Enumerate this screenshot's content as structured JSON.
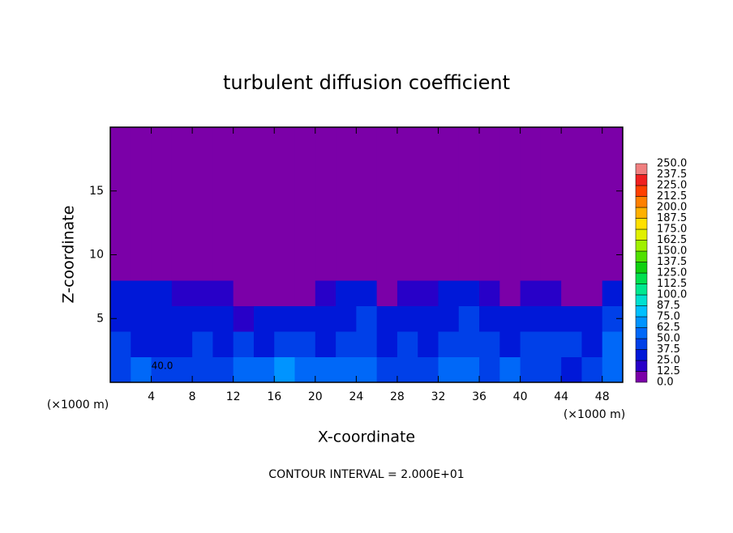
{
  "chart_data": {
    "type": "heatmap",
    "title": "turbulent diffusion coefficient",
    "x_label": "X-coordinate",
    "y_label": "Z-coordinate",
    "x_unit": "(×1000 m)",
    "x_unit_right": "(×1000 m)",
    "footnote": "CONTOUR INTERVAL = 2.000E+01",
    "annotations": [
      "40.0"
    ],
    "xlim": [
      0,
      50
    ],
    "ylim": [
      0,
      20
    ],
    "xticks": [
      4,
      8,
      12,
      16,
      20,
      24,
      28,
      32,
      36,
      40,
      44,
      48
    ],
    "yticks": [
      5,
      10,
      15
    ],
    "x_edges": [
      0,
      2,
      4,
      6,
      8,
      10,
      12,
      14,
      16,
      18,
      20,
      22,
      24,
      26,
      28,
      30,
      32,
      34,
      36,
      38,
      40,
      42,
      44,
      46,
      48,
      50
    ],
    "z_edges": [
      0,
      2,
      4,
      6,
      8,
      10,
      12,
      14,
      16,
      18,
      20
    ],
    "values": [
      [
        45,
        50,
        40,
        45,
        45,
        40,
        55,
        60,
        70,
        55,
        60,
        50,
        50,
        45,
        40,
        45,
        55,
        50,
        45,
        55,
        45,
        40,
        35,
        45,
        60
      ],
      [
        40,
        35,
        30,
        35,
        40,
        35,
        40,
        35,
        45,
        40,
        35,
        40,
        45,
        35,
        40,
        35,
        40,
        45,
        40,
        35,
        40,
        45,
        40,
        35,
        50
      ],
      [
        35,
        30,
        30,
        35,
        30,
        25,
        20,
        30,
        35,
        30,
        30,
        35,
        40,
        30,
        35,
        30,
        35,
        40,
        30,
        35,
        30,
        35,
        30,
        30,
        45
      ],
      [
        30,
        25,
        25,
        20,
        20,
        15,
        5,
        5,
        5,
        10,
        20,
        25,
        30,
        5,
        20,
        15,
        25,
        30,
        20,
        10,
        20,
        15,
        10,
        5,
        30
      ],
      [
        5,
        0,
        0,
        0,
        0,
        0,
        0,
        0,
        0,
        0,
        0,
        0,
        0,
        0,
        0,
        0,
        5,
        0,
        0,
        0,
        0,
        0,
        0,
        0,
        5
      ],
      [
        0,
        0,
        0,
        0,
        0,
        0,
        0,
        0,
        0,
        0,
        0,
        0,
        0,
        0,
        0,
        0,
        0,
        0,
        0,
        0,
        0,
        0,
        0,
        0,
        0
      ],
      [
        0,
        0,
        0,
        0,
        0,
        0,
        0,
        0,
        0,
        0,
        0,
        0,
        0,
        0,
        0,
        0,
        0,
        0,
        0,
        0,
        0,
        0,
        0,
        0,
        0
      ],
      [
        0,
        0,
        0,
        0,
        0,
        0,
        0,
        0,
        0,
        0,
        0,
        0,
        0,
        0,
        0,
        0,
        0,
        0,
        0,
        0,
        0,
        0,
        0,
        0,
        0
      ],
      [
        0,
        0,
        0,
        0,
        0,
        0,
        0,
        0,
        0,
        0,
        0,
        0,
        0,
        0,
        0,
        0,
        0,
        0,
        0,
        0,
        0,
        0,
        0,
        0,
        0
      ],
      [
        0,
        0,
        0,
        0,
        0,
        0,
        0,
        0,
        0,
        0,
        0,
        0,
        0,
        0,
        0,
        0,
        0,
        0,
        0,
        0,
        0,
        0,
        0,
        0,
        0
      ]
    ],
    "levels": [
      {
        "value": 0,
        "label": "0.0"
      },
      12.5,
      {
        "value": 25,
        "label": "25.0"
      },
      37.5,
      {
        "value": 50,
        "label": "50.0"
      },
      62.5,
      {
        "value": 75,
        "label": "75.0"
      },
      87.5,
      {
        "value": 100,
        "label": "100.0"
      },
      112.5,
      {
        "value": 125,
        "label": "125.0"
      },
      137.5,
      {
        "value": 150,
        "label": "150.0"
      },
      162.5,
      {
        "value": 175,
        "label": "175.0"
      },
      187.5,
      {
        "value": 200,
        "label": "200.0"
      },
      212.5,
      {
        "value": 225,
        "label": "225.0"
      },
      237.5,
      {
        "value": 250,
        "label": "250.0"
      }
    ],
    "colors": [
      "#7b00a8",
      "#2800c8",
      "#0018d8",
      "#0040e8",
      "#0068f8",
      "#0094ff",
      "#00c0ff",
      "#00e0d0",
      "#00e890",
      "#00e050",
      "#10d010",
      "#50e000",
      "#a0f000",
      "#e0f000",
      "#ffe000",
      "#ffb000",
      "#ff8000",
      "#ff4000",
      "#f02020",
      "#f08080"
    ]
  }
}
